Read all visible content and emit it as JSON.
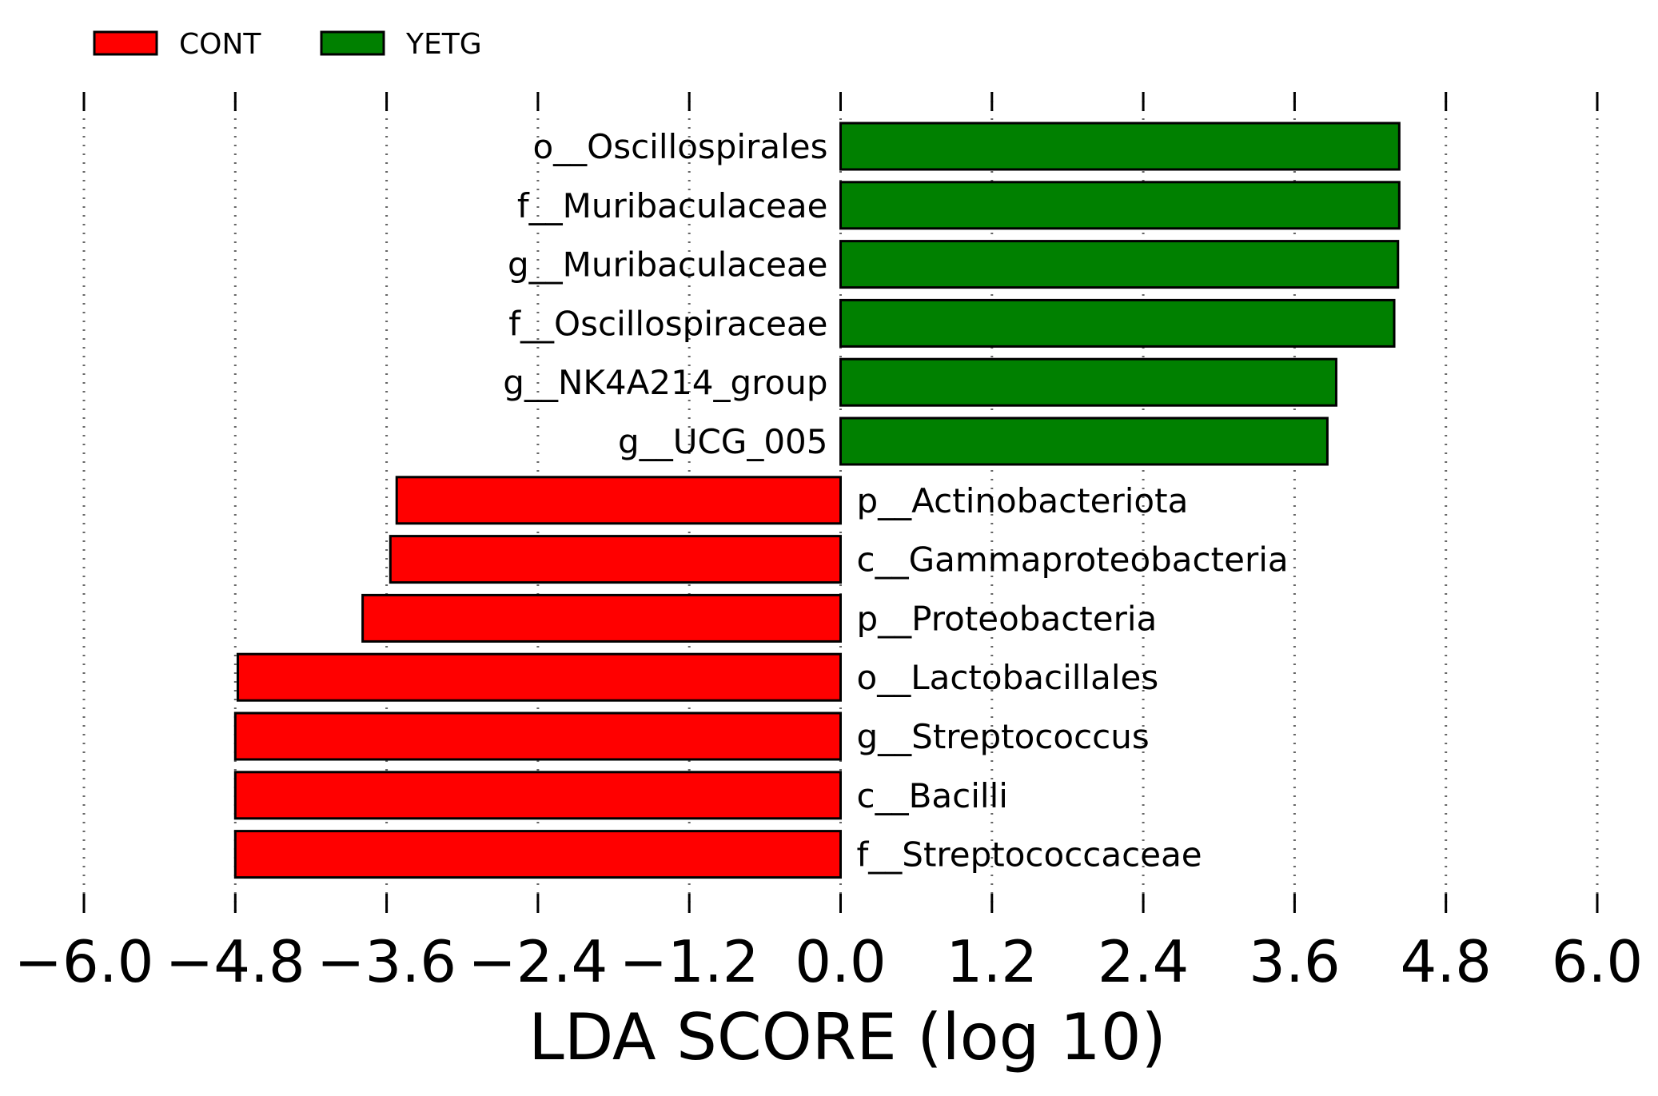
{
  "chart_data": {
    "type": "bar",
    "orientation": "horizontal",
    "xlabel": "LDA SCORE (log 10)",
    "xlim": [
      -6.0,
      6.0
    ],
    "xticks": [
      -6.0,
      -4.8,
      -3.6,
      -2.4,
      -1.2,
      0.0,
      1.2,
      2.4,
      3.6,
      4.8,
      6.0
    ],
    "xtick_labels": [
      "−6.0",
      "−4.8",
      "−3.6",
      "−2.4",
      "−1.2",
      "0.0",
      "1.2",
      "2.4",
      "3.6",
      "4.8",
      "6.0"
    ],
    "grid": "vertical-dotted",
    "legend_position": "top-left",
    "series": [
      {
        "name": "CONT",
        "color": "#ff0000"
      },
      {
        "name": "YETG",
        "color": "#008000"
      }
    ],
    "bars": [
      {
        "label": "o__Oscillospirales",
        "value": 4.43,
        "group": "YETG"
      },
      {
        "label": "f__Muribaculaceae",
        "value": 4.43,
        "group": "YETG"
      },
      {
        "label": "g__Muribaculaceae",
        "value": 4.42,
        "group": "YETG"
      },
      {
        "label": "f__Oscillospiraceae",
        "value": 4.39,
        "group": "YETG"
      },
      {
        "label": "g__NK4A214_group",
        "value": 3.93,
        "group": "YETG"
      },
      {
        "label": "g__UCG_005",
        "value": 3.86,
        "group": "YETG"
      },
      {
        "label": "p__Actinobacteriota",
        "value": -3.52,
        "group": "CONT"
      },
      {
        "label": "c__Gammaproteobacteria",
        "value": -3.57,
        "group": "CONT"
      },
      {
        "label": "p__Proteobacteria",
        "value": -3.79,
        "group": "CONT"
      },
      {
        "label": "o__Lactobacillales",
        "value": -4.78,
        "group": "CONT"
      },
      {
        "label": "g__Streptococcus",
        "value": -4.8,
        "group": "CONT"
      },
      {
        "label": "c__Bacilli",
        "value": -4.8,
        "group": "CONT"
      },
      {
        "label": "f__Streptococcaceae",
        "value": -4.8,
        "group": "CONT"
      }
    ]
  }
}
